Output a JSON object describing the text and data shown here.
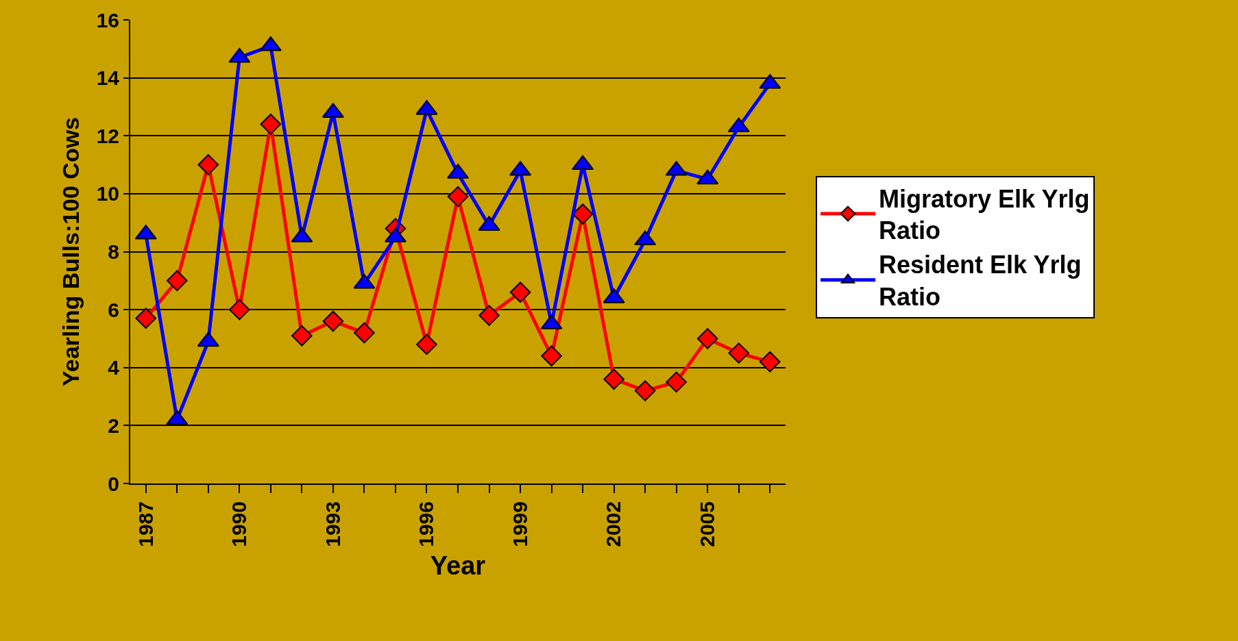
{
  "chart_data": {
    "type": "line",
    "xlabel": "Year",
    "ylabel": "Yearling Bulls:100 Cows",
    "x": [
      1987,
      1988,
      1989,
      1990,
      1991,
      1992,
      1993,
      1994,
      1995,
      1996,
      1997,
      1998,
      1999,
      2000,
      2001,
      2002,
      2003,
      2004,
      2005,
      2006,
      2007
    ],
    "series": [
      {
        "name": "Migratory Elk Yrlg Ratio",
        "color": "#ff0000",
        "marker": "diamond",
        "values": [
          5.7,
          7.0,
          11.0,
          6.0,
          12.4,
          5.1,
          5.6,
          5.2,
          8.8,
          4.8,
          9.9,
          5.8,
          6.6,
          4.4,
          9.3,
          3.6,
          3.2,
          3.5,
          5.0,
          4.5,
          4.2
        ]
      },
      {
        "name": "Resident Elk Yrlg Ratio",
        "color": "#0000ff",
        "marker": "triangle",
        "values": [
          8.6,
          2.2,
          4.9,
          14.7,
          15.1,
          8.5,
          12.8,
          6.9,
          8.5,
          12.9,
          10.7,
          8.9,
          10.8,
          5.5,
          11.0,
          6.4,
          8.4,
          10.8,
          10.5,
          12.3,
          13.8
        ]
      }
    ],
    "xlim": [
      1986.5,
      2007.5
    ],
    "xticks": [
      1987,
      1990,
      1993,
      1996,
      1999,
      2002,
      2005
    ],
    "ylim": [
      0,
      16
    ],
    "yticks": [
      0,
      2,
      4,
      6,
      8,
      10,
      12,
      14,
      16
    ],
    "grid": "y",
    "legend": "right",
    "line_style": "solid"
  }
}
